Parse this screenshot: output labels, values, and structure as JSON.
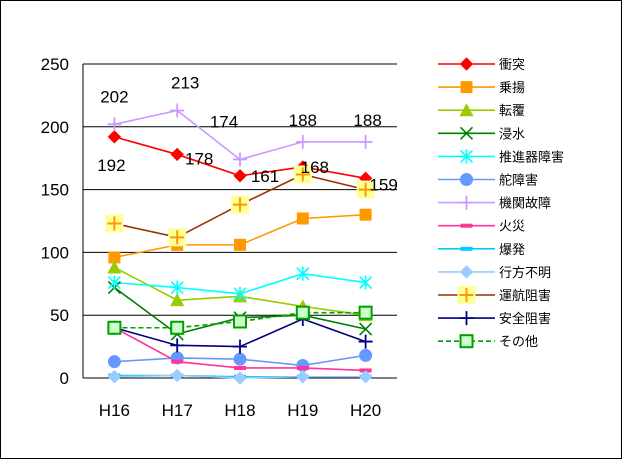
{
  "chart_data": {
    "type": "line",
    "title": "",
    "xlabel": "",
    "ylabel": "",
    "ylim": [
      0,
      250
    ],
    "yticks": [
      0,
      50,
      100,
      150,
      200,
      250
    ],
    "grid": "horizontal",
    "legend_position": "right",
    "categories": [
      "H16",
      "H17",
      "H18",
      "H19",
      "H20"
    ],
    "series": [
      {
        "name": "衝突",
        "color": "#ff0000",
        "marker": "diamond",
        "values": [
          192,
          178,
          161,
          168,
          159
        ],
        "labels_below": true
      },
      {
        "name": "乗揚",
        "color": "#ff9900",
        "marker": "square",
        "values": [
          96,
          106,
          106,
          127,
          130
        ]
      },
      {
        "name": "転覆",
        "color": "#99cc00",
        "marker": "triangle",
        "values": [
          88,
          62,
          65,
          57,
          50
        ]
      },
      {
        "name": "浸水",
        "color": "#008000",
        "marker": "x",
        "values": [
          72,
          35,
          48,
          50,
          39
        ]
      },
      {
        "name": "推進器障害",
        "color": "#00ffff",
        "marker": "star",
        "values": [
          76,
          72,
          67,
          83,
          76
        ]
      },
      {
        "name": "舵障害",
        "color": "#6699ff",
        "marker": "circle",
        "values": [
          13,
          16,
          15,
          10,
          18
        ]
      },
      {
        "name": "機関故障",
        "color": "#cc99ff",
        "marker": "plus",
        "values": [
          202,
          213,
          174,
          188,
          188
        ],
        "labels_above": true
      },
      {
        "name": "火災",
        "color": "#ff3399",
        "marker": "dash",
        "values": [
          40,
          13,
          8,
          8,
          6
        ]
      },
      {
        "name": "爆発",
        "color": "#00ccff",
        "marker": "dash",
        "values": [
          2,
          2,
          1,
          1,
          1
        ]
      },
      {
        "name": "行方不明",
        "color": "#99ccff",
        "marker": "diamond",
        "values": [
          1,
          2,
          0,
          1,
          1
        ]
      },
      {
        "name": "運航阻害",
        "color": "#993300",
        "marker": "plus-box",
        "marker_fill": "#ffff99",
        "marker_stroke": "#ff9900",
        "values": [
          123,
          112,
          138,
          162,
          150
        ]
      },
      {
        "name": "安全阻害",
        "color": "#000080",
        "marker": "plus",
        "values": [
          40,
          26,
          25,
          47,
          29
        ]
      },
      {
        "name": "その他",
        "color": "#00a000",
        "marker": "square-open",
        "marker_fill": "#ccffcc",
        "values": [
          40,
          40,
          45,
          52,
          52
        ],
        "dashed": true
      }
    ]
  }
}
